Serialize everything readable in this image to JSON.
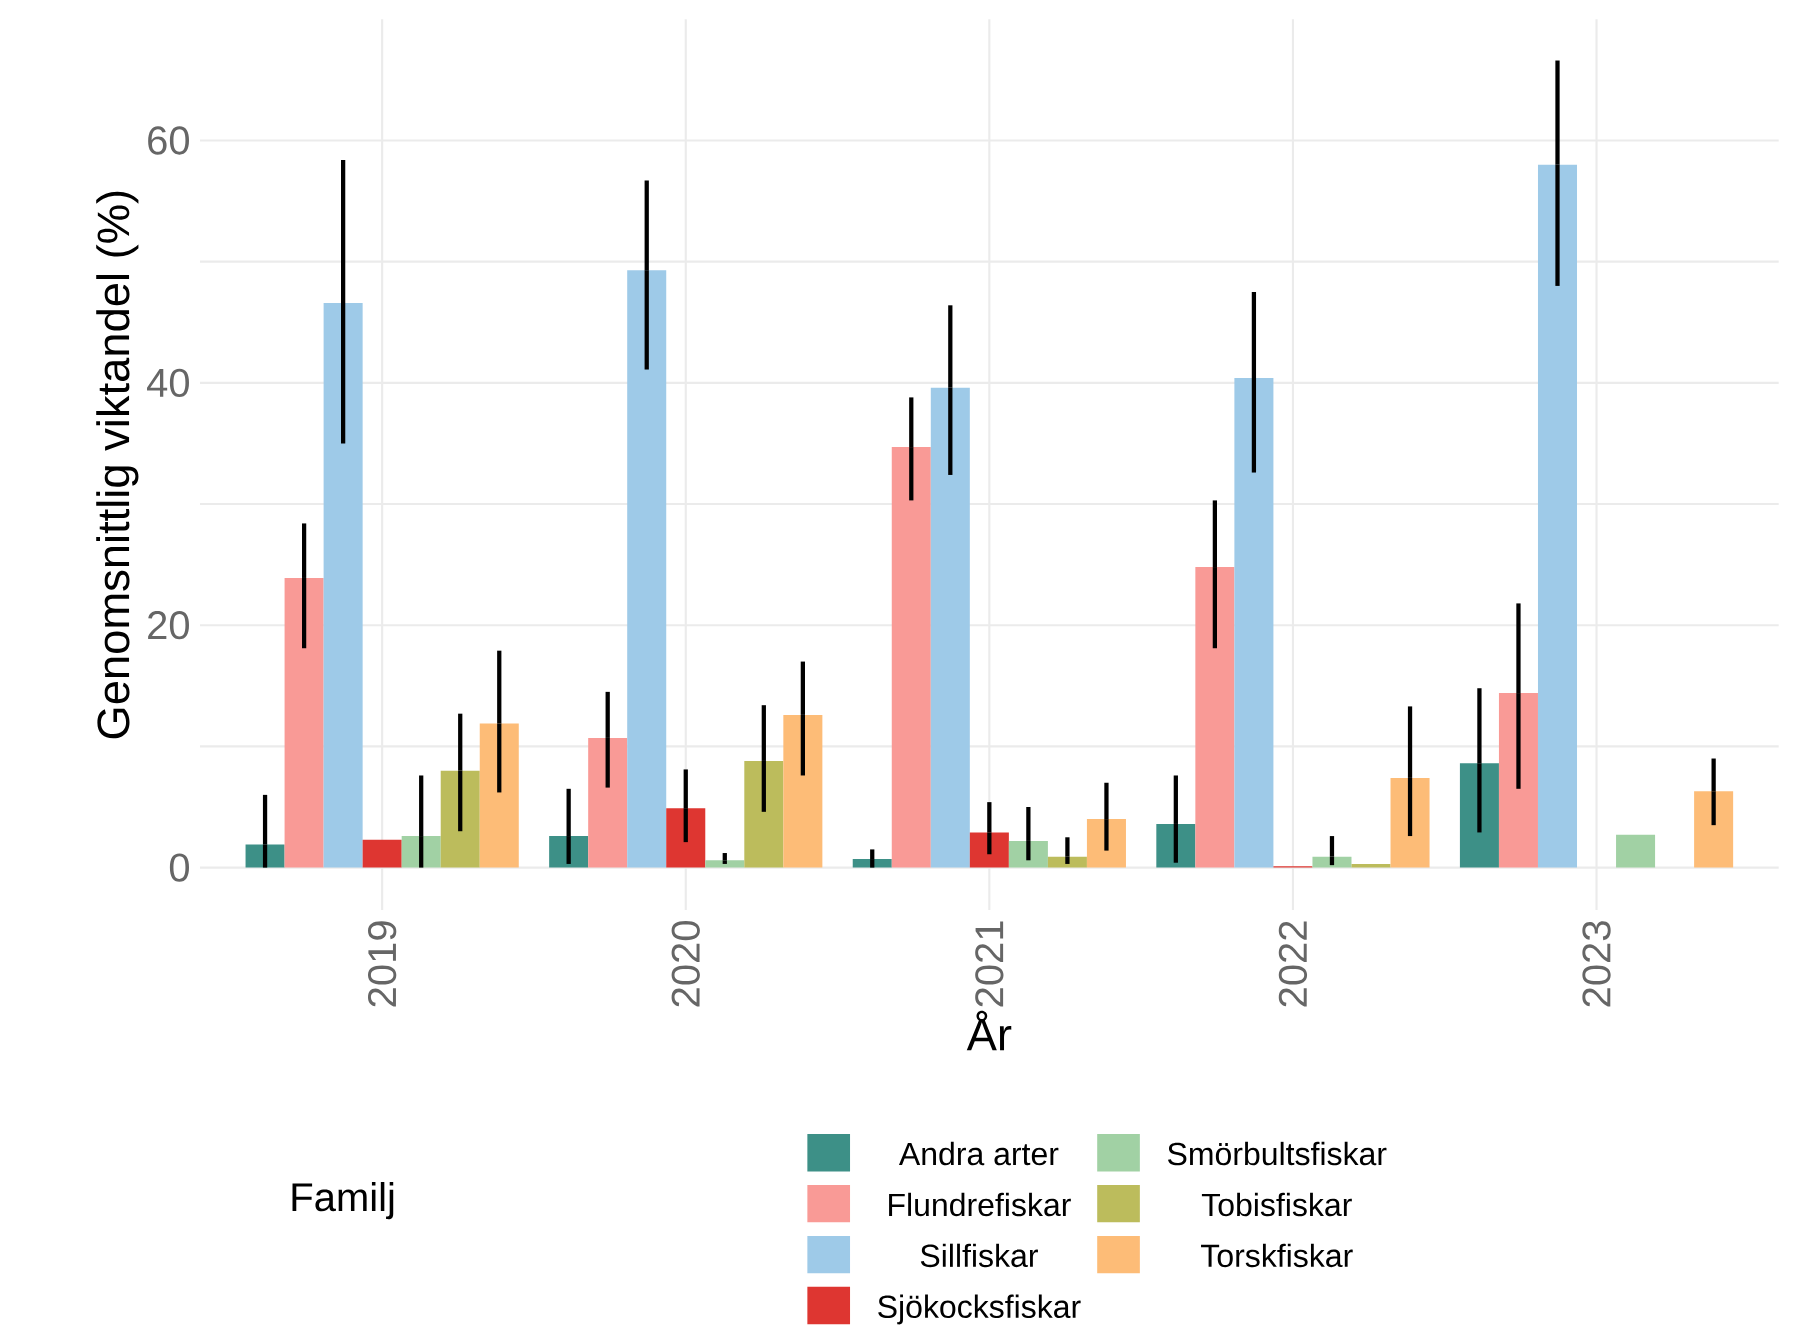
{
  "chart_data": {
    "type": "bar",
    "xlabel": "År",
    "ylabel": "Genomsnittlig viktandel (%)",
    "legend_title": "Familj",
    "categories": [
      "2019",
      "2020",
      "2021",
      "2022",
      "2023"
    ],
    "series": [
      {
        "name": "Andra arter",
        "color": "#3d9087",
        "values": [
          1.9,
          2.6,
          0.7,
          3.6,
          8.6
        ],
        "errors": [
          [
            0,
            6.0
          ],
          [
            0.3,
            6.5
          ],
          [
            0,
            1.5
          ],
          [
            0.4,
            7.6
          ],
          [
            2.9,
            14.8
          ]
        ]
      },
      {
        "name": "Flundrefiskar",
        "color": "#f99a96",
        "values": [
          23.9,
          10.7,
          34.7,
          24.8,
          14.4
        ],
        "errors": [
          [
            18.1,
            28.4
          ],
          [
            6.6,
            14.5
          ],
          [
            30.3,
            38.8
          ],
          [
            18.1,
            30.3
          ],
          [
            6.5,
            21.8
          ]
        ]
      },
      {
        "name": "Sillfiskar",
        "color": "#9ecae8",
        "values": [
          46.6,
          49.3,
          39.6,
          40.4,
          58.0
        ],
        "errors": [
          [
            35.0,
            58.4
          ],
          [
            41.1,
            56.7
          ],
          [
            32.4,
            46.4
          ],
          [
            32.6,
            47.5
          ],
          [
            48.0,
            66.6
          ]
        ]
      },
      {
        "name": "Sjökocksfiskar",
        "color": "#de3631",
        "values": [
          2.3,
          4.9,
          2.9,
          0.1,
          null
        ],
        "errors": [
          null,
          [
            2.1,
            8.1
          ],
          [
            1.1,
            5.4
          ],
          null,
          null
        ]
      },
      {
        "name": "Smörbultsfiskar",
        "color": "#a1d1a4",
        "values": [
          2.6,
          0.6,
          2.2,
          0.9,
          2.7
        ],
        "errors": [
          [
            0,
            7.6
          ],
          [
            0.3,
            1.2
          ],
          [
            0.6,
            5.0
          ],
          [
            0.2,
            2.6
          ],
          null
        ]
      },
      {
        "name": "Tobisfiskar",
        "color": "#bcbc5c",
        "values": [
          8.0,
          8.8,
          0.9,
          0.3,
          null
        ],
        "errors": [
          [
            3.0,
            12.7
          ],
          [
            4.6,
            13.4
          ],
          [
            0.3,
            2.5
          ],
          null,
          null
        ]
      },
      {
        "name": "Torskfiskar",
        "color": "#fdbc77",
        "values": [
          11.9,
          12.6,
          4.0,
          7.4,
          6.3
        ],
        "errors": [
          [
            6.2,
            17.9
          ],
          [
            7.6,
            17.0
          ],
          [
            1.4,
            7.0
          ],
          [
            2.6,
            13.3
          ],
          [
            3.5,
            9.0
          ]
        ]
      }
    ],
    "ylim": [
      -3.5,
      70
    ],
    "yticks": [
      0,
      {
        "value": 10,
        "label": null
      },
      20,
      {
        "value": 30,
        "label": null
      },
      40,
      {
        "value": 50,
        "label": null
      },
      60
    ],
    "grid": true,
    "legend": "bottom"
  }
}
